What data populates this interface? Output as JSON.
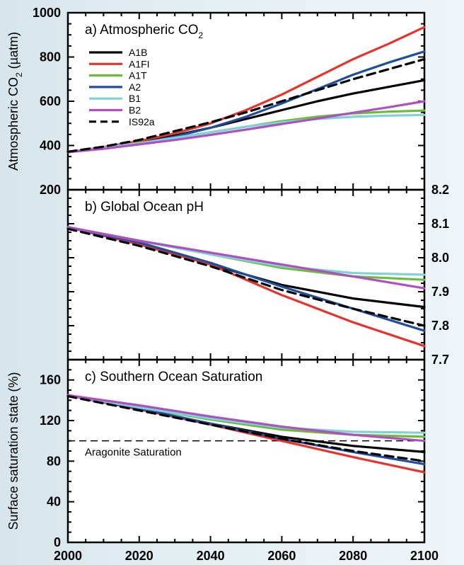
{
  "chart_data": [
    {
      "type": "line",
      "title_main": "a) Atmospheric CO",
      "title_sub": "2",
      "ylabel_main": "Atmospheric CO",
      "ylabel_sub": "2",
      "ylabel_unit": " (µatm)",
      "ylim": [
        200,
        1000
      ],
      "yticks": [
        "200",
        "400",
        "600",
        "800",
        "1000"
      ],
      "xlim": [
        2000,
        2100
      ],
      "series": [
        {
          "name": "A1B",
          "color": "#000000",
          "dashed": false,
          "x": [
            2000,
            2010,
            2020,
            2030,
            2040,
            2050,
            2060,
            2070,
            2080,
            2090,
            2100
          ],
          "y": [
            370,
            390,
            415,
            445,
            480,
            520,
            560,
            600,
            635,
            665,
            695
          ]
        },
        {
          "name": "A1FI",
          "color": "#e8322c",
          "dashed": false,
          "x": [
            2000,
            2010,
            2020,
            2030,
            2040,
            2050,
            2060,
            2070,
            2080,
            2090,
            2100
          ],
          "y": [
            370,
            393,
            420,
            455,
            500,
            560,
            630,
            710,
            790,
            860,
            935
          ]
        },
        {
          "name": "A1T",
          "color": "#6cbc3c",
          "dashed": false,
          "x": [
            2000,
            2010,
            2020,
            2030,
            2040,
            2050,
            2060,
            2070,
            2080,
            2090,
            2100
          ],
          "y": [
            370,
            390,
            412,
            435,
            460,
            485,
            510,
            530,
            545,
            553,
            558
          ]
        },
        {
          "name": "A2",
          "color": "#1f4ea1",
          "dashed": false,
          "x": [
            2000,
            2010,
            2020,
            2030,
            2040,
            2050,
            2060,
            2070,
            2080,
            2090,
            2100
          ],
          "y": [
            370,
            388,
            410,
            440,
            480,
            530,
            590,
            655,
            720,
            775,
            825
          ]
        },
        {
          "name": "B1",
          "color": "#7fd3d3",
          "dashed": false,
          "x": [
            2000,
            2010,
            2020,
            2030,
            2040,
            2050,
            2060,
            2070,
            2080,
            2090,
            2100
          ],
          "y": [
            370,
            390,
            410,
            435,
            460,
            485,
            505,
            520,
            530,
            535,
            538
          ]
        },
        {
          "name": "B2",
          "color": "#b04ec3",
          "dashed": false,
          "x": [
            2000,
            2010,
            2020,
            2030,
            2040,
            2050,
            2060,
            2070,
            2080,
            2090,
            2100
          ],
          "y": [
            370,
            385,
            405,
            425,
            448,
            472,
            497,
            522,
            548,
            573,
            600
          ]
        },
        {
          "name": "IS92a",
          "color": "#000000",
          "dashed": true,
          "x": [
            2000,
            2010,
            2020,
            2030,
            2040,
            2050,
            2060,
            2070,
            2080,
            2090,
            2100
          ],
          "y": [
            372,
            395,
            425,
            465,
            505,
            550,
            600,
            650,
            700,
            745,
            790
          ]
        }
      ]
    },
    {
      "type": "line",
      "title_main": "b) Global Ocean pH",
      "ylim": [
        7.7,
        8.2
      ],
      "yticks": [
        "7.7",
        "7.8",
        "7.9",
        "8.0",
        "8.1",
        "8.2"
      ],
      "xlim": [
        2000,
        2100
      ],
      "series": [
        {
          "name": "A1B",
          "color": "#000000",
          "dashed": false,
          "x": [
            2000,
            2020,
            2040,
            2060,
            2080,
            2100
          ],
          "y": [
            8.09,
            8.04,
            7.98,
            7.92,
            7.88,
            7.855
          ]
        },
        {
          "name": "A1FI",
          "color": "#e8322c",
          "dashed": false,
          "x": [
            2000,
            2020,
            2040,
            2060,
            2080,
            2100
          ],
          "y": [
            8.09,
            8.04,
            7.98,
            7.89,
            7.81,
            7.74
          ]
        },
        {
          "name": "A1T",
          "color": "#6cbc3c",
          "dashed": false,
          "x": [
            2000,
            2020,
            2040,
            2060,
            2080,
            2100
          ],
          "y": [
            8.09,
            8.05,
            8.01,
            7.97,
            7.945,
            7.935
          ]
        },
        {
          "name": "A2",
          "color": "#1f4ea1",
          "dashed": false,
          "x": [
            2000,
            2020,
            2040,
            2060,
            2080,
            2100
          ],
          "y": [
            8.09,
            8.045,
            7.985,
            7.915,
            7.85,
            7.785
          ]
        },
        {
          "name": "B1",
          "color": "#7fd3d3",
          "dashed": false,
          "x": [
            2000,
            2020,
            2040,
            2060,
            2080,
            2100
          ],
          "y": [
            8.09,
            8.05,
            8.01,
            7.975,
            7.955,
            7.95
          ]
        },
        {
          "name": "B2",
          "color": "#b04ec3",
          "dashed": false,
          "x": [
            2000,
            2020,
            2040,
            2060,
            2080,
            2100
          ],
          "y": [
            8.09,
            8.05,
            8.015,
            7.98,
            7.945,
            7.91
          ]
        },
        {
          "name": "IS92a",
          "color": "#000000",
          "dashed": true,
          "x": [
            2000,
            2020,
            2040,
            2060,
            2080,
            2100
          ],
          "y": [
            8.085,
            8.035,
            7.975,
            7.905,
            7.85,
            7.8
          ]
        }
      ]
    },
    {
      "type": "line",
      "title_main": "c) Southern Ocean Saturation",
      "ylabel_main": "Surface saturation state (%)",
      "ylim": [
        0,
        180
      ],
      "yticks": [
        "0",
        "40",
        "80",
        "120",
        "160"
      ],
      "xlim": [
        2000,
        2100
      ],
      "xticks": [
        "2000",
        "2020",
        "2040",
        "2060",
        "2080",
        "2100"
      ],
      "annotation": "Aragonite Saturation",
      "reference_line": 100,
      "series": [
        {
          "name": "A1B",
          "color": "#000000",
          "dashed": false,
          "x": [
            2000,
            2020,
            2040,
            2060,
            2080,
            2100
          ],
          "y": [
            145,
            131,
            117,
            104,
            95,
            89
          ]
        },
        {
          "name": "A1FI",
          "color": "#e8322c",
          "dashed": false,
          "x": [
            2000,
            2020,
            2040,
            2060,
            2080,
            2100
          ],
          "y": [
            145,
            131,
            116,
            100,
            84,
            69
          ]
        },
        {
          "name": "A1T",
          "color": "#6cbc3c",
          "dashed": false,
          "x": [
            2000,
            2020,
            2040,
            2060,
            2080,
            2100
          ],
          "y": [
            145,
            133,
            121,
            111,
            106,
            104
          ]
        },
        {
          "name": "A2",
          "color": "#1f4ea1",
          "dashed": false,
          "x": [
            2000,
            2020,
            2040,
            2060,
            2080,
            2100
          ],
          "y": [
            145,
            132,
            117,
            102,
            89,
            77
          ]
        },
        {
          "name": "B1",
          "color": "#7fd3d3",
          "dashed": false,
          "x": [
            2000,
            2020,
            2040,
            2060,
            2080,
            2100
          ],
          "y": [
            145,
            133,
            122,
            113,
            109,
            108
          ]
        },
        {
          "name": "B2",
          "color": "#b04ec3",
          "dashed": false,
          "x": [
            2000,
            2020,
            2040,
            2060,
            2080,
            2100
          ],
          "y": [
            145,
            135,
            124,
            114,
            106,
            100
          ]
        },
        {
          "name": "IS92a",
          "color": "#000000",
          "dashed": true,
          "x": [
            2000,
            2020,
            2040,
            2060,
            2080,
            2100
          ],
          "y": [
            144,
            130,
            116,
            102,
            90,
            80
          ]
        }
      ]
    }
  ]
}
